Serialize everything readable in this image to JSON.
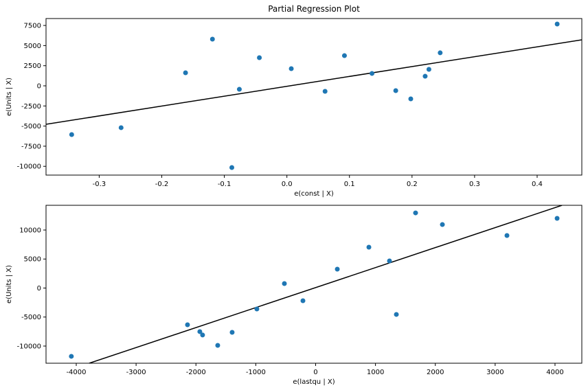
{
  "chart_data": [
    {
      "type": "scatter",
      "title": "Partial Regression Plot",
      "x_label": "e(const | X)",
      "y_label": "e(Units | X)",
      "xlim": [
        -0.385,
        0.4714
      ],
      "ylim": [
        -11090,
        8360
      ],
      "xticks": [
        -0.3,
        -0.2,
        -0.1,
        {
          "value": 0,
          "label": "0.0"
        },
        0.1,
        0.2,
        0.3,
        0.4
      ],
      "yticks": [
        -10000,
        -7500,
        -5000,
        -2500,
        0,
        2500,
        5000,
        7500
      ],
      "point_color": "#1f77b4",
      "line_color": "#000000",
      "points": {
        "x": [
          -0.344,
          -0.265,
          -0.162,
          -0.119,
          -0.088,
          -0.076,
          -0.044,
          0.007,
          0.061,
          0.092,
          0.136,
          0.174,
          0.198,
          0.221,
          0.227,
          0.245,
          0.432
        ],
        "y": [
          -6060,
          -5200,
          1620,
          5800,
          -10150,
          -430,
          3500,
          2130,
          -680,
          3750,
          1540,
          -600,
          -1620,
          1190,
          2050,
          4100,
          7680
        ]
      },
      "fit_line": {
        "x": [
          -0.385,
          0.4714
        ],
        "y": [
          -4780,
          5720
        ]
      }
    },
    {
      "type": "scatter",
      "x_label": "e(lastqu | X)",
      "y_label": "e(Units | X)",
      "xlim": [
        -4505,
        4448
      ],
      "ylim": [
        -12960,
        14260
      ],
      "xticks": [
        -4000,
        -3000,
        -2000,
        -1000,
        0,
        1000,
        2000,
        3000,
        4000
      ],
      "yticks": [
        -10000,
        -5000,
        0,
        5000,
        10000
      ],
      "point_color": "#1f77b4",
      "line_color": "#000000",
      "points": {
        "x": [
          -4082,
          -2141,
          -1935,
          -1889,
          -1636,
          -1395,
          -982,
          -522,
          -212,
          362,
          890,
          1234,
          1349,
          1670,
          2118,
          3197,
          4035
        ],
        "y": [
          -11770,
          -6330,
          -7510,
          -8100,
          -9880,
          -7630,
          -3610,
          770,
          -2190,
          3250,
          7040,
          4670,
          -4550,
          12950,
          10940,
          9050,
          12010
        ]
      },
      "fit_line": {
        "x": [
          -3783,
          4116
        ],
        "y": [
          -12960,
          14260
        ]
      }
    }
  ]
}
